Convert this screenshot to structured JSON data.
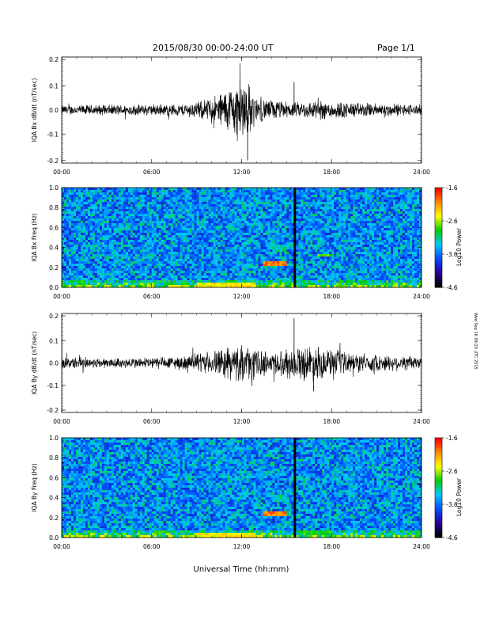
{
  "header": {
    "title": "2015/08/30  00:00-24:00 UT",
    "page": "Page 1/1"
  },
  "side_stamp": "Wed Sep 16 09:20 UTC 2015",
  "xaxis": {
    "ticks": [
      "00:00",
      "06:00",
      "12:00",
      "18:00",
      "24:00"
    ],
    "label": "Universal Time (hh:mm)"
  },
  "colorbar": {
    "ticks": [
      "-1.6",
      "-2.6",
      "-3.6",
      "-4.6"
    ],
    "label": "Log10 Power",
    "colors": [
      "#ff0000",
      "#ff8c00",
      "#ffff00",
      "#00cc00",
      "#00c8ff",
      "#0050ff",
      "#2a00a0",
      "#000000"
    ]
  },
  "chart_data": [
    {
      "type": "line",
      "ylabel": "IQA Bx dB/dt (nT/sec)",
      "yticks": [
        "0.2",
        "0.1",
        "0.0",
        "-0.1",
        "-0.2"
      ],
      "ylim": [
        -0.21,
        0.21
      ],
      "xlim_hours": [
        0,
        24
      ],
      "grid": false,
      "color": "#000000",
      "envelope": [
        {
          "t": 0,
          "amp": 0.02
        },
        {
          "t": 4,
          "amp": 0.022
        },
        {
          "t": 8,
          "amp": 0.025
        },
        {
          "t": 9.5,
          "amp": 0.04
        },
        {
          "t": 10.5,
          "amp": 0.07
        },
        {
          "t": 11.5,
          "amp": 0.11
        },
        {
          "t": 12.2,
          "amp": 0.14
        },
        {
          "t": 13,
          "amp": 0.05
        },
        {
          "t": 15.5,
          "amp": 0.03
        },
        {
          "t": 17,
          "amp": 0.04
        },
        {
          "t": 20,
          "amp": 0.03
        },
        {
          "t": 24,
          "amp": 0.022
        }
      ],
      "spikes": [
        {
          "t": 15.5,
          "value": 0.11
        },
        {
          "t": 12.4,
          "value": -0.2
        }
      ]
    },
    {
      "type": "heatmap",
      "ylabel": "IQA Bx Freq (Hz)",
      "yticks": [
        "1.0",
        "0.8",
        "0.6",
        "0.4",
        "0.2",
        "0.0"
      ],
      "ylim": [
        0,
        1.0
      ],
      "xlim_hours": [
        0,
        24
      ],
      "zlim": [
        -4.6,
        -1.6
      ],
      "features": [
        {
          "t0": 9,
          "t1": 13,
          "f0": 0,
          "f1": 0.04,
          "value": -2.4
        },
        {
          "t0": 13.5,
          "t1": 15,
          "f0": 0.22,
          "f1": 0.26,
          "value": -2.0
        },
        {
          "t0": 14,
          "t1": 15,
          "f0": 0.36,
          "f1": 0.42,
          "value": -3.2
        },
        {
          "t0": 17,
          "t1": 18,
          "f0": 0.3,
          "f1": 0.34,
          "value": -2.8
        },
        {
          "t0": 15.5,
          "t1": 15.62,
          "f0": 0,
          "f1": 1.0,
          "value": -4.6
        }
      ]
    },
    {
      "type": "line",
      "ylabel": "IQA By dB/dt (nT/sec)",
      "yticks": [
        "0.2",
        "0.1",
        "0.0",
        "-0.1",
        "-0.2"
      ],
      "ylim": [
        -0.21,
        0.21
      ],
      "xlim_hours": [
        0,
        24
      ],
      "grid": false,
      "color": "#000000",
      "envelope": [
        {
          "t": 0,
          "amp": 0.025
        },
        {
          "t": 4,
          "amp": 0.022
        },
        {
          "t": 8,
          "amp": 0.03
        },
        {
          "t": 10,
          "amp": 0.05
        },
        {
          "t": 11.5,
          "amp": 0.08
        },
        {
          "t": 12.5,
          "amp": 0.07
        },
        {
          "t": 14,
          "amp": 0.05
        },
        {
          "t": 16.5,
          "amp": 0.08
        },
        {
          "t": 18,
          "amp": 0.06
        },
        {
          "t": 20,
          "amp": 0.04
        },
        {
          "t": 24,
          "amp": 0.03
        }
      ],
      "spikes": [
        {
          "t": 15.5,
          "value": 0.19
        },
        {
          "t": 16.8,
          "value": -0.12
        }
      ]
    },
    {
      "type": "heatmap",
      "ylabel": "IQA By Freq (Hz)",
      "yticks": [
        "1.0",
        "0.8",
        "0.6",
        "0.4",
        "0.2",
        "0.0"
      ],
      "ylim": [
        0,
        1.0
      ],
      "xlim_hours": [
        0,
        24
      ],
      "zlim": [
        -4.6,
        -1.6
      ],
      "features": [
        {
          "t0": 9,
          "t1": 13,
          "f0": 0,
          "f1": 0.05,
          "value": -2.4
        },
        {
          "t0": 13.5,
          "t1": 15,
          "f0": 0.22,
          "f1": 0.26,
          "value": -2.0
        },
        {
          "t0": 14,
          "t1": 15,
          "f0": 0.36,
          "f1": 0.42,
          "value": -3.2
        },
        {
          "t0": 16,
          "t1": 18,
          "f0": 0.02,
          "f1": 0.08,
          "value": -2.9
        },
        {
          "t0": 15.5,
          "t1": 15.62,
          "f0": 0,
          "f1": 1.0,
          "value": -4.6
        }
      ]
    }
  ]
}
